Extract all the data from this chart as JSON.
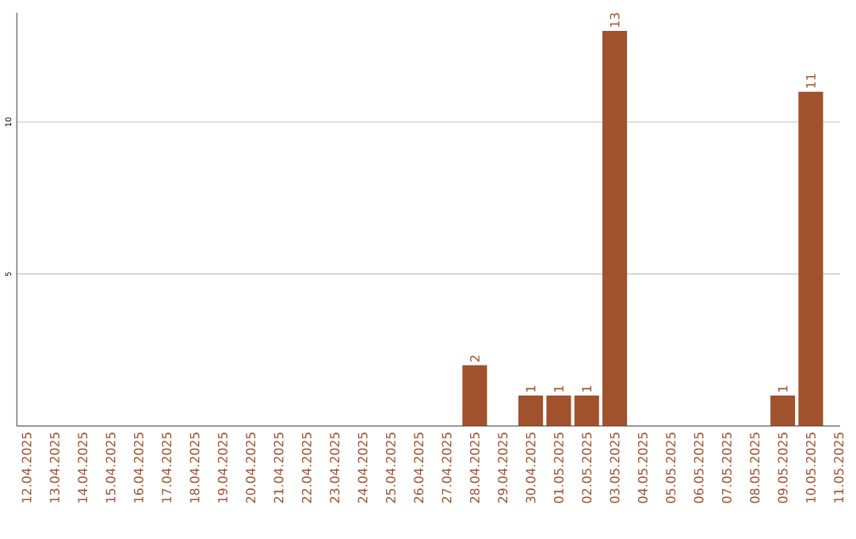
{
  "chart_data": {
    "type": "bar",
    "categories": [
      "12.04.2025",
      "13.04.2025",
      "14.04.2025",
      "15.04.2025",
      "16.04.2025",
      "17.04.2025",
      "18.04.2025",
      "19.04.2025",
      "20.04.2025",
      "21.04.2025",
      "22.04.2025",
      "23.04.2025",
      "24.04.2025",
      "25.04.2025",
      "26.04.2025",
      "27.04.2025",
      "28.04.2025",
      "29.04.2025",
      "30.04.2025",
      "01.05.2025",
      "02.05.2025",
      "03.05.2025",
      "04.05.2025",
      "05.05.2025",
      "06.05.2025",
      "07.05.2025",
      "08.05.2025",
      "09.05.2025",
      "10.05.2025",
      "11.05.2025"
    ],
    "values": [
      0,
      0,
      0,
      0,
      0,
      0,
      0,
      0,
      0,
      0,
      0,
      0,
      0,
      0,
      0,
      0,
      2,
      0,
      1,
      1,
      1,
      13,
      0,
      0,
      0,
      0,
      0,
      1,
      11,
      0
    ],
    "value_labels": [
      null,
      null,
      null,
      null,
      null,
      null,
      null,
      null,
      null,
      null,
      null,
      null,
      null,
      null,
      null,
      null,
      "2",
      null,
      "1",
      "1",
      "1",
      "13",
      null,
      null,
      null,
      null,
      null,
      "1",
      "11",
      null
    ],
    "color": "#a0522d",
    "ylim": [
      0,
      13.6
    ],
    "yticks": [
      5,
      10
    ],
    "grid": "y"
  }
}
